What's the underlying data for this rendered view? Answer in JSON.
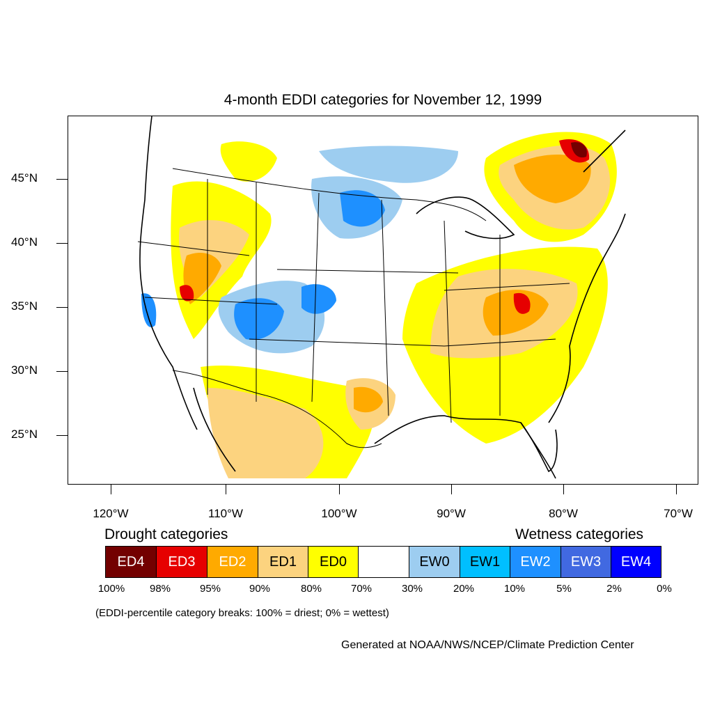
{
  "title": "4-month EDDI categories for November 12, 1999",
  "latitude_labels": [
    "45°N",
    "40°N",
    "35°N",
    "30°N",
    "25°N"
  ],
  "longitude_labels": [
    "120°W",
    "110°W",
    "100°W",
    "90°W",
    "80°W",
    "70°W"
  ],
  "legend": {
    "drought_heading": "Drought categories",
    "wetness_heading": "Wetness categories",
    "categories": [
      {
        "label": "ED4",
        "color": "#730000"
      },
      {
        "label": "ED3",
        "color": "#e60000"
      },
      {
        "label": "ED2",
        "color": "#ffaa00"
      },
      {
        "label": "ED1",
        "color": "#fcd37f"
      },
      {
        "label": "ED0",
        "color": "#ffff00"
      },
      {
        "label": "",
        "color": "#ffffff"
      },
      {
        "label": "EW0",
        "color": "#9dcdf0"
      },
      {
        "label": "EW1",
        "color": "#00bfff"
      },
      {
        "label": "EW2",
        "color": "#1e90ff"
      },
      {
        "label": "EW3",
        "color": "#4169e1"
      },
      {
        "label": "EW4",
        "color": "#0000ff"
      }
    ],
    "breaks": [
      "100%",
      "98%",
      "95%",
      "90%",
      "80%",
      "70%",
      "30%",
      "20%",
      "10%",
      "5%",
      "2%",
      "0%"
    ]
  },
  "footnote": "(EDDI-percentile category breaks: 100% = driest; 0% = wettest)",
  "credit": "Generated at NOAA/NWS/NCEP/Climate Prediction Center"
}
